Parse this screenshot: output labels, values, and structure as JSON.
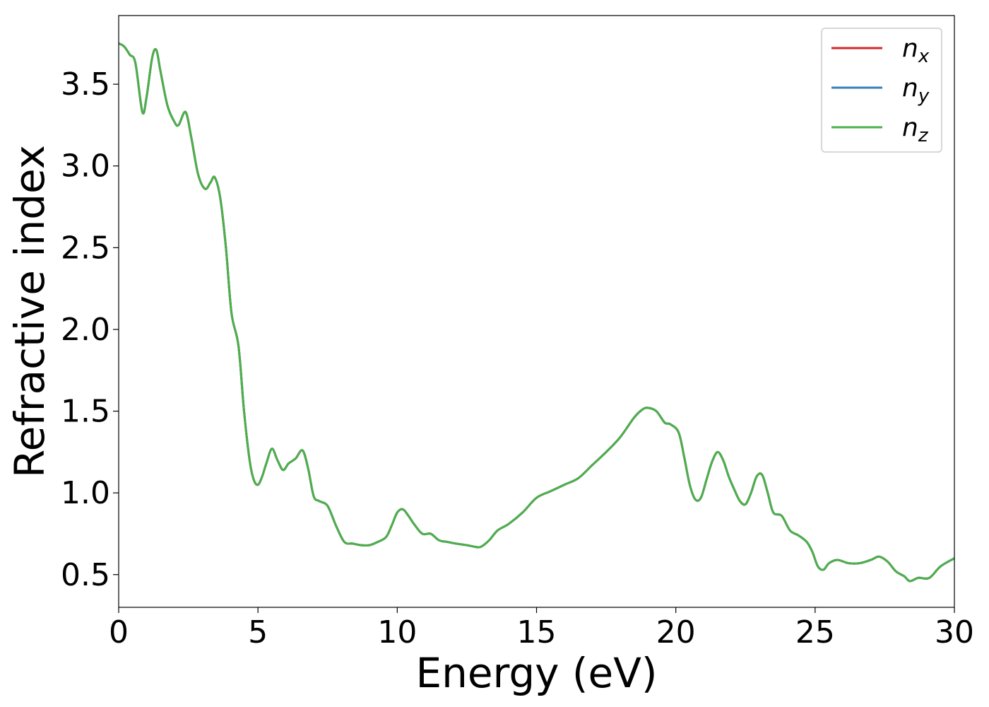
{
  "chart_data": {
    "type": "line",
    "title": "",
    "xlabel": "Energy (eV)",
    "ylabel": "Refractive index",
    "xlim": [
      0,
      30
    ],
    "ylim": [
      0.3,
      3.92
    ],
    "xticks": [
      0,
      5,
      10,
      15,
      20,
      25,
      30
    ],
    "yticks": [
      0.5,
      1.0,
      1.5,
      2.0,
      2.5,
      3.0,
      3.5
    ],
    "grid": false,
    "legend_placement": "top-right",
    "x": [
      0,
      0.2,
      0.4,
      0.6,
      0.85,
      1.0,
      1.2,
      1.35,
      1.5,
      1.75,
      2.0,
      2.15,
      2.4,
      2.6,
      2.85,
      3.1,
      3.3,
      3.45,
      3.65,
      3.85,
      4.05,
      4.3,
      4.5,
      4.7,
      4.85,
      5.0,
      5.15,
      5.3,
      5.5,
      5.7,
      5.9,
      6.1,
      6.35,
      6.6,
      6.8,
      7.0,
      7.2,
      7.5,
      7.8,
      8.1,
      8.4,
      8.7,
      9.0,
      9.3,
      9.6,
      9.8,
      10.0,
      10.2,
      10.4,
      10.6,
      10.9,
      11.2,
      11.5,
      11.8,
      12.1,
      12.5,
      12.8,
      13.0,
      13.3,
      13.6,
      14.0,
      14.5,
      15.0,
      15.5,
      16.0,
      16.5,
      17.0,
      17.5,
      18.0,
      18.5,
      18.8,
      19.0,
      19.3,
      19.6,
      19.8,
      20.1,
      20.3,
      20.5,
      20.7,
      20.9,
      21.1,
      21.3,
      21.5,
      21.7,
      21.9,
      22.1,
      22.3,
      22.5,
      22.7,
      22.9,
      23.1,
      23.3,
      23.5,
      23.8,
      24.1,
      24.4,
      24.7,
      24.9,
      25.1,
      25.3,
      25.5,
      25.8,
      26.2,
      26.6,
      27.0,
      27.3,
      27.6,
      27.9,
      28.2,
      28.4,
      28.7,
      29.1,
      29.5,
      30.0
    ],
    "series": [
      {
        "name": "n_x",
        "color": "#d62728",
        "values": [
          3.75,
          3.73,
          3.68,
          3.63,
          3.33,
          3.42,
          3.66,
          3.71,
          3.58,
          3.37,
          3.27,
          3.25,
          3.33,
          3.18,
          2.95,
          2.86,
          2.9,
          2.93,
          2.8,
          2.5,
          2.1,
          1.9,
          1.5,
          1.2,
          1.08,
          1.05,
          1.1,
          1.18,
          1.27,
          1.2,
          1.14,
          1.18,
          1.21,
          1.26,
          1.15,
          0.98,
          0.95,
          0.92,
          0.8,
          0.7,
          0.69,
          0.68,
          0.68,
          0.7,
          0.73,
          0.8,
          0.88,
          0.9,
          0.86,
          0.81,
          0.75,
          0.75,
          0.71,
          0.7,
          0.69,
          0.68,
          0.67,
          0.67,
          0.71,
          0.77,
          0.81,
          0.88,
          0.97,
          1.01,
          1.05,
          1.09,
          1.17,
          1.25,
          1.34,
          1.46,
          1.51,
          1.52,
          1.5,
          1.43,
          1.42,
          1.37,
          1.22,
          1.05,
          0.96,
          0.97,
          1.08,
          1.19,
          1.25,
          1.2,
          1.1,
          1.02,
          0.95,
          0.93,
          1.0,
          1.1,
          1.11,
          1.0,
          0.88,
          0.86,
          0.77,
          0.74,
          0.7,
          0.64,
          0.55,
          0.53,
          0.57,
          0.59,
          0.57,
          0.57,
          0.59,
          0.61,
          0.58,
          0.52,
          0.49,
          0.46,
          0.48,
          0.48,
          0.55,
          0.6
        ]
      },
      {
        "name": "n_y",
        "color": "#377eb8",
        "values": [
          3.75,
          3.73,
          3.68,
          3.63,
          3.33,
          3.42,
          3.66,
          3.71,
          3.58,
          3.37,
          3.27,
          3.25,
          3.33,
          3.18,
          2.95,
          2.86,
          2.9,
          2.93,
          2.8,
          2.5,
          2.1,
          1.9,
          1.5,
          1.2,
          1.08,
          1.05,
          1.1,
          1.18,
          1.27,
          1.2,
          1.14,
          1.18,
          1.21,
          1.26,
          1.15,
          0.98,
          0.95,
          0.92,
          0.8,
          0.7,
          0.69,
          0.68,
          0.68,
          0.7,
          0.73,
          0.8,
          0.88,
          0.9,
          0.86,
          0.81,
          0.75,
          0.75,
          0.71,
          0.7,
          0.69,
          0.68,
          0.67,
          0.67,
          0.71,
          0.77,
          0.81,
          0.88,
          0.97,
          1.01,
          1.05,
          1.09,
          1.17,
          1.25,
          1.34,
          1.46,
          1.51,
          1.52,
          1.5,
          1.43,
          1.42,
          1.37,
          1.22,
          1.05,
          0.96,
          0.97,
          1.08,
          1.19,
          1.25,
          1.2,
          1.1,
          1.02,
          0.95,
          0.93,
          1.0,
          1.1,
          1.11,
          1.0,
          0.88,
          0.86,
          0.77,
          0.74,
          0.7,
          0.64,
          0.55,
          0.53,
          0.57,
          0.59,
          0.57,
          0.57,
          0.59,
          0.61,
          0.58,
          0.52,
          0.49,
          0.46,
          0.48,
          0.48,
          0.55,
          0.6
        ]
      },
      {
        "name": "n_z",
        "color": "#4daf4a",
        "values": [
          3.75,
          3.73,
          3.68,
          3.63,
          3.33,
          3.42,
          3.66,
          3.71,
          3.58,
          3.37,
          3.27,
          3.25,
          3.33,
          3.18,
          2.95,
          2.86,
          2.9,
          2.93,
          2.8,
          2.5,
          2.1,
          1.9,
          1.5,
          1.2,
          1.08,
          1.05,
          1.1,
          1.18,
          1.27,
          1.2,
          1.14,
          1.18,
          1.21,
          1.26,
          1.15,
          0.98,
          0.95,
          0.92,
          0.8,
          0.7,
          0.69,
          0.68,
          0.68,
          0.7,
          0.73,
          0.8,
          0.88,
          0.9,
          0.86,
          0.81,
          0.75,
          0.75,
          0.71,
          0.7,
          0.69,
          0.68,
          0.67,
          0.67,
          0.71,
          0.77,
          0.81,
          0.88,
          0.97,
          1.01,
          1.05,
          1.09,
          1.17,
          1.25,
          1.34,
          1.46,
          1.51,
          1.52,
          1.5,
          1.43,
          1.42,
          1.37,
          1.22,
          1.05,
          0.96,
          0.97,
          1.08,
          1.19,
          1.25,
          1.2,
          1.1,
          1.02,
          0.95,
          0.93,
          1.0,
          1.1,
          1.11,
          1.0,
          0.88,
          0.86,
          0.77,
          0.74,
          0.7,
          0.64,
          0.55,
          0.53,
          0.57,
          0.59,
          0.57,
          0.57,
          0.59,
          0.61,
          0.58,
          0.52,
          0.49,
          0.46,
          0.48,
          0.48,
          0.55,
          0.6
        ]
      }
    ],
    "legend": [
      {
        "base": "n",
        "sub": "x",
        "color": "#d62728"
      },
      {
        "base": "n",
        "sub": "y",
        "color": "#377eb8"
      },
      {
        "base": "n",
        "sub": "z",
        "color": "#4daf4a"
      }
    ]
  }
}
